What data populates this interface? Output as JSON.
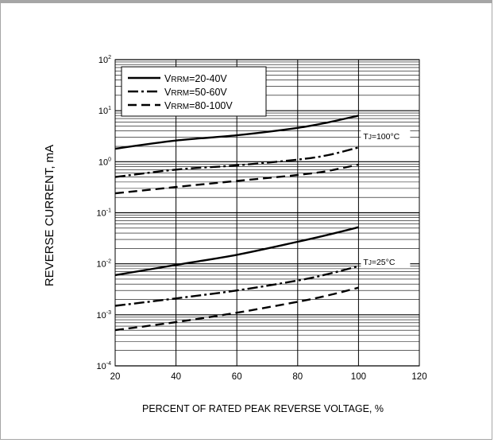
{
  "chart_data": {
    "type": "line",
    "xlabel": "PERCENT OF RATED PEAK REVERSE VOLTAGE, %",
    "ylabel": "REVERSE CURRENT, mA",
    "xlim": [
      20,
      120
    ],
    "ylim": [
      0.0001,
      100
    ],
    "yscale": "log",
    "grid": true,
    "x_ticks": [
      "20",
      "40",
      "60",
      "80",
      "100",
      "120"
    ],
    "y_ticks": [
      {
        "base": "10",
        "exp": "2",
        "value": 100
      },
      {
        "base": "10",
        "exp": "1",
        "value": 10
      },
      {
        "base": "10",
        "exp": "0",
        "value": 1
      },
      {
        "base": "10",
        "exp": "-1",
        "value": 0.1
      },
      {
        "base": "10",
        "exp": "-2",
        "value": 0.01
      },
      {
        "base": "10",
        "exp": "-3",
        "value": 0.001
      },
      {
        "base": "10",
        "exp": "-4",
        "value": 0.0001
      }
    ],
    "legend_position": "top-left",
    "legend": [
      {
        "prefix": "V",
        "sub": "RRM",
        "suffix": "=20-40V",
        "dash": "solid"
      },
      {
        "prefix": "V",
        "sub": "RRM",
        "suffix": "=50-60V",
        "dash": "dashdot"
      },
      {
        "prefix": "V",
        "sub": "RRM",
        "suffix": "=80-100V",
        "dash": "dashed"
      }
    ],
    "annotations": [
      {
        "prefix": "T",
        "sub": "J",
        "suffix": "=100°C",
        "x": 100,
        "y": 3.2
      },
      {
        "prefix": "T",
        "sub": "J",
        "suffix": "=25°C",
        "x": 100,
        "y": 0.011
      }
    ],
    "series": [
      {
        "dash": "solid",
        "x": [
          20,
          40,
          60,
          80,
          90,
          100
        ],
        "y": [
          1.8,
          2.6,
          3.3,
          4.6,
          5.9,
          8.0
        ]
      },
      {
        "dash": "dashdot",
        "x": [
          20,
          40,
          60,
          80,
          90,
          100
        ],
        "y": [
          0.5,
          0.7,
          0.85,
          1.1,
          1.35,
          1.9
        ]
      },
      {
        "dash": "dashed",
        "x": [
          20,
          40,
          60,
          80,
          90,
          100
        ],
        "y": [
          0.24,
          0.32,
          0.42,
          0.55,
          0.66,
          0.88
        ]
      },
      {
        "dash": "solid",
        "x": [
          20,
          40,
          60,
          80,
          90,
          100
        ],
        "y": [
          0.006,
          0.0095,
          0.015,
          0.027,
          0.037,
          0.052
        ]
      },
      {
        "dash": "dashdot",
        "x": [
          20,
          40,
          60,
          80,
          90,
          100
        ],
        "y": [
          0.0015,
          0.0021,
          0.003,
          0.0047,
          0.0063,
          0.009
        ]
      },
      {
        "dash": "dashed",
        "x": [
          20,
          40,
          60,
          80,
          90,
          100
        ],
        "y": [
          0.0005,
          0.00072,
          0.0011,
          0.0018,
          0.0024,
          0.0034
        ]
      }
    ]
  }
}
